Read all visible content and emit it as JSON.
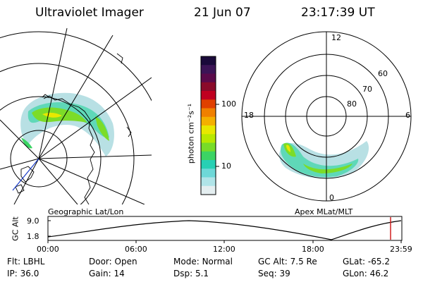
{
  "header": {
    "instrument": "Ultraviolet Imager",
    "date": "21 Jun 07",
    "time": "23:17:39 UT"
  },
  "colorbar": {
    "unit_label": "photon cm⁻²s⁻¹",
    "ticks": [
      "100",
      "10"
    ],
    "colors": [
      "#1a0a3a",
      "#3c1456",
      "#5a0a4a",
      "#8a0a2a",
      "#c00020",
      "#e04000",
      "#f08000",
      "#f4b000",
      "#e8e800",
      "#b8e800",
      "#78dc28",
      "#3cd464",
      "#28d0b4",
      "#6ed8d8",
      "#b0e4e8",
      "#e4eef0"
    ]
  },
  "left_map": {
    "label": "Geographic Lat/Lon"
  },
  "right_map": {
    "label": "Apex MLat/MLT",
    "lat_labels": [
      "60",
      "70",
      "80"
    ],
    "mlt_labels": {
      "top": "12",
      "left": "18",
      "right": "6",
      "bottom": "0"
    }
  },
  "altitude_plot": {
    "ylabel": "GC Alt",
    "yticks": [
      "9.0",
      "1.8"
    ],
    "xticks": [
      "00:00",
      "06:00",
      "12:00",
      "18:00",
      "23:59"
    ],
    "current_time_marker": "23:17:39"
  },
  "info": {
    "col1": [
      {
        "label": "Flt:",
        "value": "LBHL"
      },
      {
        "label": "IP:",
        "value": "36.0"
      }
    ],
    "col2": [
      {
        "label": "Door:",
        "value": "Open"
      },
      {
        "label": "Gain:",
        "value": "14"
      }
    ],
    "col3": [
      {
        "label": "Mode:",
        "value": "Normal"
      },
      {
        "label": "Dsp:",
        "value": "5.1"
      }
    ],
    "col4": [
      {
        "label": "GC Alt:",
        "value": "7.5 Re"
      },
      {
        "label": "Seq:",
        "value": "39"
      }
    ],
    "col5": [
      {
        "label": "GLat:",
        "value": "-65.2"
      },
      {
        "label": "GLon:",
        "value": "46.2"
      }
    ]
  }
}
